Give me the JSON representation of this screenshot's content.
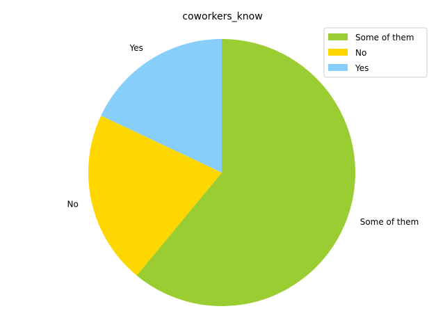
{
  "chart_data": {
    "type": "pie",
    "title": "coworkers_know",
    "categories": [
      "Some of them",
      "No",
      "Yes"
    ],
    "values": [
      61,
      21,
      18
    ],
    "colors": [
      "#9ACD32",
      "#FFD700",
      "#87CEFA"
    ],
    "start_angle_deg": 90,
    "direction": "clockwise",
    "legend": {
      "placement": "top-right",
      "entries": [
        "Some of them",
        "No",
        "Yes"
      ]
    }
  }
}
